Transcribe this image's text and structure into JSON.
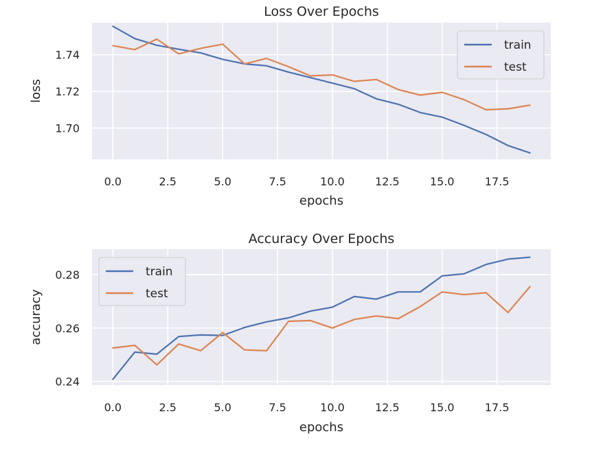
{
  "chart_data": [
    {
      "type": "line",
      "title": "Loss Over Epochs",
      "xlabel": "epochs",
      "ylabel": "loss",
      "xlim": [
        -0.95,
        19.95
      ],
      "ylim": [
        1.683,
        1.7575
      ],
      "xticks": [
        "0.0",
        "2.5",
        "5.0",
        "7.5",
        "10.0",
        "12.5",
        "15.0",
        "17.5"
      ],
      "yticks": [
        "1.70",
        "1.72",
        "1.74"
      ],
      "grid": true,
      "legend_position": "top-right",
      "x": [
        0,
        1,
        2,
        3,
        4,
        5,
        6,
        7,
        8,
        9,
        10,
        11,
        12,
        13,
        14,
        15,
        16,
        17,
        18,
        19
      ],
      "series": [
        {
          "name": "train",
          "color": "#4c72b0",
          "values": [
            1.7555,
            1.7488,
            1.7452,
            1.743,
            1.741,
            1.7375,
            1.735,
            1.734,
            1.7305,
            1.7275,
            1.7245,
            1.7215,
            1.716,
            1.713,
            1.7085,
            1.706,
            1.7015,
            1.6965,
            1.6905,
            1.6865
          ]
        },
        {
          "name": "test",
          "color": "#dd8452",
          "values": [
            1.745,
            1.7428,
            1.7485,
            1.7405,
            1.7435,
            1.7458,
            1.735,
            1.738,
            1.7335,
            1.7285,
            1.729,
            1.7255,
            1.7265,
            1.721,
            1.718,
            1.7195,
            1.7155,
            1.71,
            1.7105,
            1.7125
          ]
        }
      ]
    },
    {
      "type": "line",
      "title": "Accuracy Over Epochs",
      "xlabel": "epochs",
      "ylabel": "accuracy",
      "xlim": [
        -0.95,
        19.95
      ],
      "ylim": [
        0.2386,
        0.2895
      ],
      "xticks": [
        "0.0",
        "2.5",
        "5.0",
        "7.5",
        "10.0",
        "12.5",
        "15.0",
        "17.5"
      ],
      "yticks": [
        "0.24",
        "0.26",
        "0.28"
      ],
      "grid": true,
      "legend_position": "top-left",
      "x": [
        0,
        1,
        2,
        3,
        4,
        5,
        6,
        7,
        8,
        9,
        10,
        11,
        12,
        13,
        14,
        15,
        16,
        17,
        18,
        19
      ],
      "series": [
        {
          "name": "train",
          "color": "#4c72b0",
          "values": [
            0.2408,
            0.251,
            0.2502,
            0.2568,
            0.2574,
            0.2572,
            0.2602,
            0.2623,
            0.2638,
            0.2663,
            0.2678,
            0.2718,
            0.2708,
            0.2735,
            0.2735,
            0.2795,
            0.2803,
            0.2838,
            0.2858,
            0.2865
          ]
        },
        {
          "name": "test",
          "color": "#dd8452",
          "values": [
            0.2525,
            0.2535,
            0.2462,
            0.254,
            0.2515,
            0.2583,
            0.2518,
            0.2515,
            0.2625,
            0.2628,
            0.26,
            0.2632,
            0.2645,
            0.2635,
            0.268,
            0.2735,
            0.2725,
            0.2732,
            0.2658,
            0.2755
          ]
        }
      ]
    }
  ]
}
